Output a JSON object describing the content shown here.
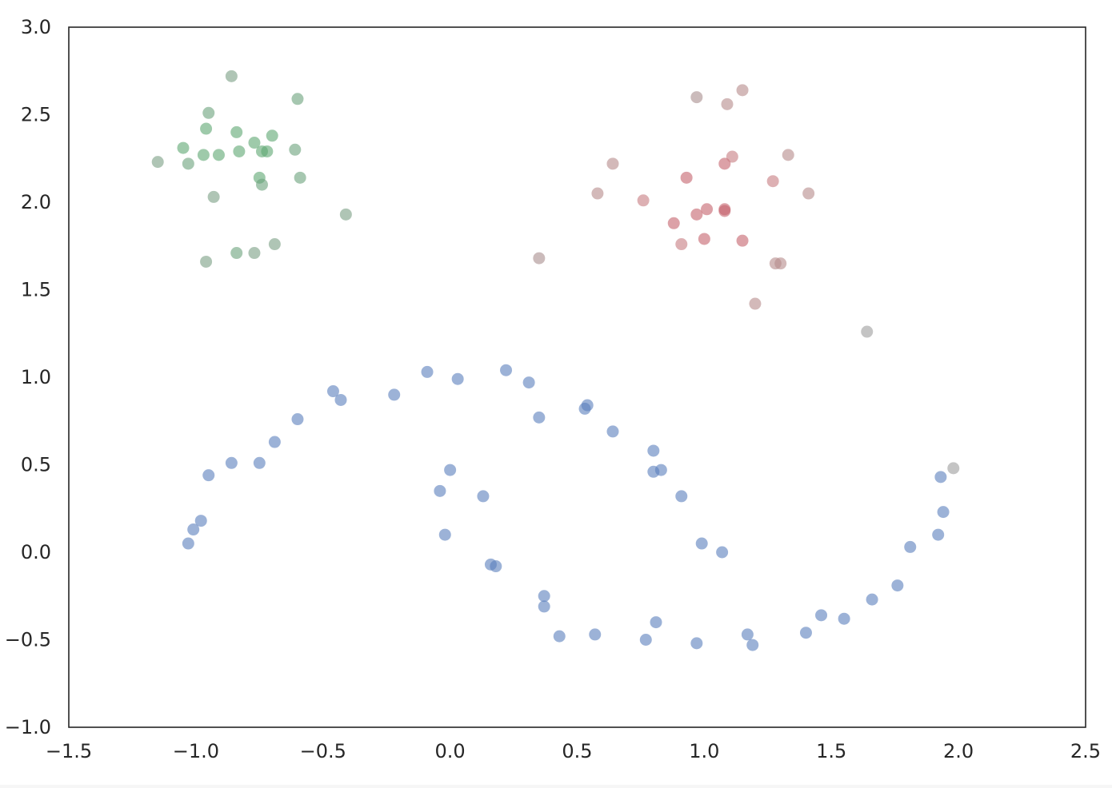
{
  "chart_data": {
    "type": "scatter",
    "title": "",
    "xlabel": "",
    "ylabel": "",
    "xlim": [
      -1.5,
      2.5
    ],
    "ylim": [
      -1.0,
      3.0
    ],
    "x_ticks": [
      -1.5,
      -1.0,
      -0.5,
      0.0,
      0.5,
      1.0,
      1.5,
      2.0,
      2.5
    ],
    "y_ticks": [
      -1.0,
      -0.5,
      0.0,
      0.5,
      1.0,
      1.5,
      2.0,
      2.5,
      3.0
    ],
    "x_tick_labels": [
      "−1.5",
      "−1.0",
      "−0.5",
      "0.0",
      "0.5",
      "1.0",
      "1.5",
      "2.0",
      "2.5"
    ],
    "y_tick_labels": [
      "−1.0",
      "−0.5",
      "0.0",
      "0.5",
      "1.0",
      "1.5",
      "2.0",
      "2.5",
      "3.0"
    ],
    "grid": false,
    "legend": "none",
    "marker_opacity": 0.6,
    "points": [
      {
        "x": -1.15,
        "y": 2.23,
        "color": "#7a9e83"
      },
      {
        "x": -1.05,
        "y": 2.31,
        "color": "#5da672"
      },
      {
        "x": -1.03,
        "y": 2.22,
        "color": "#6aa27b"
      },
      {
        "x": -0.97,
        "y": 2.27,
        "color": "#5da672"
      },
      {
        "x": -0.96,
        "y": 2.42,
        "color": "#5da672"
      },
      {
        "x": -0.95,
        "y": 2.51,
        "color": "#6aa27b"
      },
      {
        "x": -0.93,
        "y": 2.03,
        "color": "#7a9e83"
      },
      {
        "x": -0.91,
        "y": 2.27,
        "color": "#5da672"
      },
      {
        "x": -0.86,
        "y": 2.72,
        "color": "#7a9e83"
      },
      {
        "x": -0.84,
        "y": 2.4,
        "color": "#5da672"
      },
      {
        "x": -0.83,
        "y": 2.29,
        "color": "#5da672"
      },
      {
        "x": -0.77,
        "y": 2.34,
        "color": "#5da672"
      },
      {
        "x": -0.75,
        "y": 2.14,
        "color": "#5da672"
      },
      {
        "x": -0.74,
        "y": 2.1,
        "color": "#6aa27b"
      },
      {
        "x": -0.74,
        "y": 2.29,
        "color": "#5da672"
      },
      {
        "x": -0.72,
        "y": 2.29,
        "color": "#5da672"
      },
      {
        "x": -0.7,
        "y": 2.38,
        "color": "#5da672"
      },
      {
        "x": -0.61,
        "y": 2.3,
        "color": "#6aa27b"
      },
      {
        "x": -0.6,
        "y": 2.59,
        "color": "#6aa27b"
      },
      {
        "x": -0.59,
        "y": 2.14,
        "color": "#6aa27b"
      },
      {
        "x": -0.41,
        "y": 1.93,
        "color": "#7a9e83"
      },
      {
        "x": -0.96,
        "y": 1.66,
        "color": "#7a9e83"
      },
      {
        "x": -0.84,
        "y": 1.71,
        "color": "#6aa27b"
      },
      {
        "x": -0.77,
        "y": 1.71,
        "color": "#7a9e83"
      },
      {
        "x": -0.69,
        "y": 1.76,
        "color": "#7a9e83"
      },
      {
        "x": 0.35,
        "y": 1.68,
        "color": "#a88e8e"
      },
      {
        "x": 0.58,
        "y": 2.05,
        "color": "#b68b8b"
      },
      {
        "x": 0.64,
        "y": 2.22,
        "color": "#b68b8b"
      },
      {
        "x": 0.76,
        "y": 2.01,
        "color": "#c67b80"
      },
      {
        "x": 0.88,
        "y": 1.88,
        "color": "#c4636c"
      },
      {
        "x": 0.91,
        "y": 1.76,
        "color": "#c67b80"
      },
      {
        "x": 0.93,
        "y": 2.14,
        "color": "#c4636c"
      },
      {
        "x": 0.97,
        "y": 2.6,
        "color": "#a88e8e"
      },
      {
        "x": 0.97,
        "y": 1.93,
        "color": "#c4636c"
      },
      {
        "x": 1.0,
        "y": 1.79,
        "color": "#c4636c"
      },
      {
        "x": 1.01,
        "y": 1.96,
        "color": "#c4636c"
      },
      {
        "x": 1.08,
        "y": 1.95,
        "color": "#c4636c"
      },
      {
        "x": 1.08,
        "y": 1.96,
        "color": "#c4636c"
      },
      {
        "x": 1.08,
        "y": 2.22,
        "color": "#c4636c"
      },
      {
        "x": 1.09,
        "y": 2.56,
        "color": "#b68b8b"
      },
      {
        "x": 1.11,
        "y": 2.26,
        "color": "#c67b80"
      },
      {
        "x": 1.15,
        "y": 2.64,
        "color": "#b68b8b"
      },
      {
        "x": 1.15,
        "y": 1.78,
        "color": "#c4636c"
      },
      {
        "x": 1.2,
        "y": 1.42,
        "color": "#b68b8b"
      },
      {
        "x": 1.27,
        "y": 2.12,
        "color": "#c67b80"
      },
      {
        "x": 1.28,
        "y": 1.65,
        "color": "#b68b8b"
      },
      {
        "x": 1.3,
        "y": 1.65,
        "color": "#b68b8b"
      },
      {
        "x": 1.33,
        "y": 2.27,
        "color": "#b68b8b"
      },
      {
        "x": 1.41,
        "y": 2.05,
        "color": "#b68b8b"
      },
      {
        "x": 1.64,
        "y": 1.26,
        "color": "#9c9c9c"
      },
      {
        "x": 1.98,
        "y": 0.48,
        "color": "#9c9c9c"
      },
      {
        "x": -1.03,
        "y": 0.05,
        "color": "#5a7fbd"
      },
      {
        "x": -1.01,
        "y": 0.13,
        "color": "#5a7fbd"
      },
      {
        "x": -0.98,
        "y": 0.18,
        "color": "#5a7fbd"
      },
      {
        "x": -0.95,
        "y": 0.44,
        "color": "#5a7fbd"
      },
      {
        "x": -0.86,
        "y": 0.51,
        "color": "#5a7fbd"
      },
      {
        "x": -0.75,
        "y": 0.51,
        "color": "#5a7fbd"
      },
      {
        "x": -0.69,
        "y": 0.63,
        "color": "#5a7fbd"
      },
      {
        "x": -0.6,
        "y": 0.76,
        "color": "#5a7fbd"
      },
      {
        "x": -0.46,
        "y": 0.92,
        "color": "#5a7fbd"
      },
      {
        "x": -0.43,
        "y": 0.87,
        "color": "#5a7fbd"
      },
      {
        "x": -0.22,
        "y": 0.9,
        "color": "#5a7fbd"
      },
      {
        "x": -0.09,
        "y": 1.03,
        "color": "#5a7fbd"
      },
      {
        "x": 0.03,
        "y": 0.99,
        "color": "#5a7fbd"
      },
      {
        "x": 0.22,
        "y": 1.04,
        "color": "#5a7fbd"
      },
      {
        "x": 0.31,
        "y": 0.97,
        "color": "#5a7fbd"
      },
      {
        "x": 0.35,
        "y": 0.77,
        "color": "#5a7fbd"
      },
      {
        "x": 0.53,
        "y": 0.82,
        "color": "#5a7fbd"
      },
      {
        "x": 0.54,
        "y": 0.84,
        "color": "#5a7fbd"
      },
      {
        "x": 0.64,
        "y": 0.69,
        "color": "#5a7fbd"
      },
      {
        "x": 0.8,
        "y": 0.58,
        "color": "#5a7fbd"
      },
      {
        "x": 0.8,
        "y": 0.46,
        "color": "#5a7fbd"
      },
      {
        "x": 0.83,
        "y": 0.47,
        "color": "#5a7fbd"
      },
      {
        "x": 0.91,
        "y": 0.32,
        "color": "#5a7fbd"
      },
      {
        "x": 0.99,
        "y": 0.05,
        "color": "#5a7fbd"
      },
      {
        "x": 1.07,
        "y": 0.0,
        "color": "#5a7fbd"
      },
      {
        "x": -0.04,
        "y": 0.35,
        "color": "#5a7fbd"
      },
      {
        "x": -0.02,
        "y": 0.1,
        "color": "#5a7fbd"
      },
      {
        "x": 0.0,
        "y": 0.47,
        "color": "#5a7fbd"
      },
      {
        "x": 0.13,
        "y": 0.32,
        "color": "#5a7fbd"
      },
      {
        "x": 0.16,
        "y": -0.07,
        "color": "#5a7fbd"
      },
      {
        "x": 0.18,
        "y": -0.08,
        "color": "#5a7fbd"
      },
      {
        "x": 0.37,
        "y": -0.25,
        "color": "#5a7fbd"
      },
      {
        "x": 0.37,
        "y": -0.31,
        "color": "#5a7fbd"
      },
      {
        "x": 0.43,
        "y": -0.48,
        "color": "#5a7fbd"
      },
      {
        "x": 0.57,
        "y": -0.47,
        "color": "#5a7fbd"
      },
      {
        "x": 0.77,
        "y": -0.5,
        "color": "#5a7fbd"
      },
      {
        "x": 0.81,
        "y": -0.4,
        "color": "#5a7fbd"
      },
      {
        "x": 0.97,
        "y": -0.52,
        "color": "#5a7fbd"
      },
      {
        "x": 1.17,
        "y": -0.47,
        "color": "#5a7fbd"
      },
      {
        "x": 1.19,
        "y": -0.53,
        "color": "#5a7fbd"
      },
      {
        "x": 1.4,
        "y": -0.46,
        "color": "#5a7fbd"
      },
      {
        "x": 1.46,
        "y": -0.36,
        "color": "#5a7fbd"
      },
      {
        "x": 1.55,
        "y": -0.38,
        "color": "#5a7fbd"
      },
      {
        "x": 1.66,
        "y": -0.27,
        "color": "#5a7fbd"
      },
      {
        "x": 1.76,
        "y": -0.19,
        "color": "#5a7fbd"
      },
      {
        "x": 1.81,
        "y": 0.03,
        "color": "#5a7fbd"
      },
      {
        "x": 1.92,
        "y": 0.1,
        "color": "#5a7fbd"
      },
      {
        "x": 1.94,
        "y": 0.23,
        "color": "#5a7fbd"
      },
      {
        "x": 1.93,
        "y": 0.43,
        "color": "#5a7fbd"
      }
    ]
  }
}
